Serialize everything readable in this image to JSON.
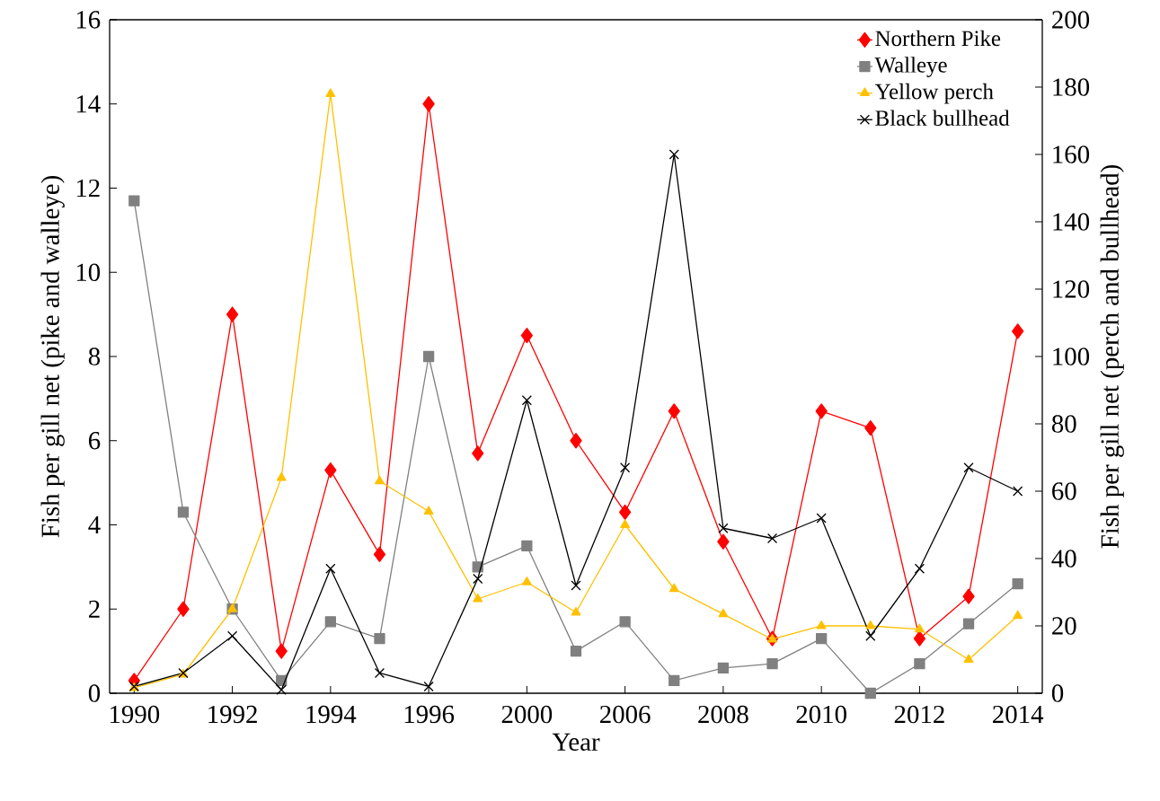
{
  "chart_data": {
    "type": "line",
    "xlabel": "Year",
    "ylabel": "Fish per gill net (pike and walleye)",
    "y2label": "Fish  per gill net (perch and bullhead)",
    "categories": [
      "1990",
      null,
      "1992",
      null,
      "1994",
      null,
      "1996",
      null,
      "2000",
      null,
      "2006",
      null,
      "2008",
      null,
      "2010",
      null,
      "2012",
      null,
      "2014"
    ],
    "series": [
      {
        "name": "Northern Pike",
        "color": "#ff0000",
        "marker": "diamond",
        "values": [
          0.3,
          2.0,
          9.0,
          1.0,
          5.3,
          3.3,
          14.0,
          5.7,
          8.5,
          6.0,
          4.3,
          6.7,
          3.6,
          1.3,
          6.7,
          6.3,
          1.3,
          2.3,
          8.6
        ]
      },
      {
        "name": "Walleye",
        "color": "#808080",
        "marker": "square",
        "values": [
          11.7,
          4.3,
          2.0,
          0.3,
          1.7,
          1.3,
          8.0,
          3.0,
          3.5,
          1.0,
          1.7,
          0.3,
          0.6,
          0.7,
          1.3,
          0.0,
          0.7,
          1.65,
          2.6
        ]
      },
      {
        "name": "Yellow perch",
        "color": "#ffc000",
        "marker": "triangle",
        "axis": "y2",
        "values": [
          1.6,
          5.6,
          25,
          64,
          178,
          63,
          54,
          28,
          33,
          24,
          50,
          31,
          23.5,
          16,
          20,
          20,
          19,
          10,
          23
        ]
      },
      {
        "name": "Black bullhead",
        "color": "#000000",
        "marker": "cross",
        "axis": "y2",
        "values": [
          2,
          6,
          17,
          1,
          37,
          6,
          2,
          34,
          87,
          32,
          67,
          160,
          49,
          46,
          52,
          17,
          37,
          67,
          60
        ]
      }
    ],
    "ylim": [
      0,
      16
    ],
    "yticks": [
      0,
      2,
      4,
      6,
      8,
      10,
      12,
      14,
      16
    ],
    "y2lim": [
      0,
      200
    ],
    "y2ticks": [
      0,
      20,
      40,
      60,
      80,
      100,
      120,
      140,
      160,
      180,
      200
    ],
    "grid": false,
    "legend": "top right",
    "line_style": "solid"
  }
}
